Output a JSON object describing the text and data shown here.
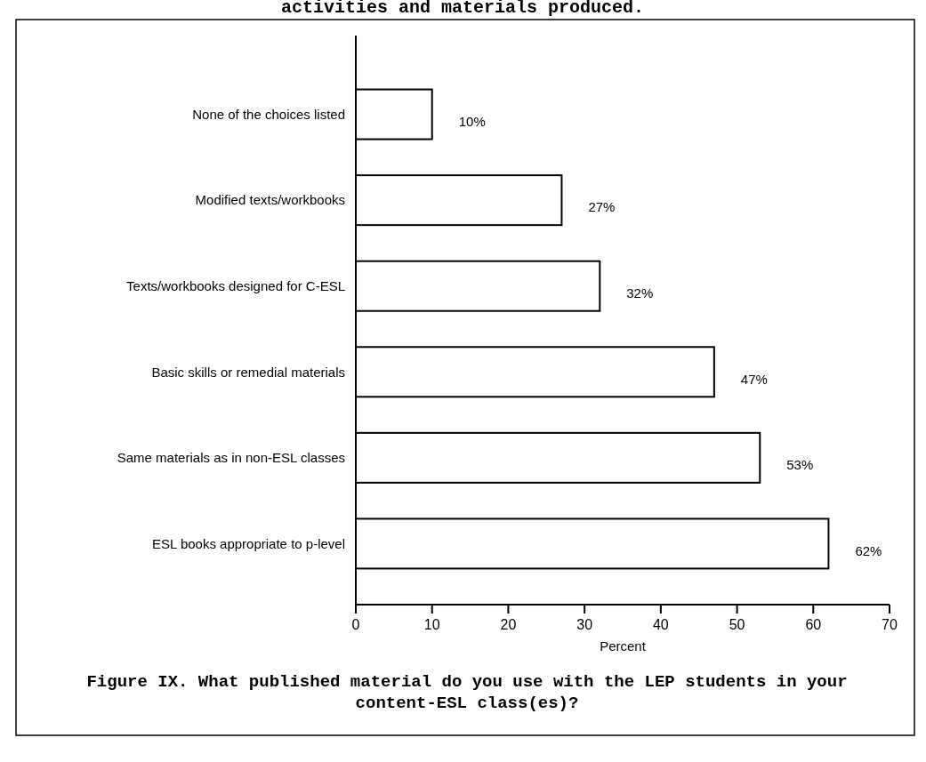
{
  "chart_data": {
    "type": "bar",
    "orientation": "horizontal",
    "categories": [
      "None of the choices listed",
      "Modified texts/workbooks",
      "Texts/workbooks designed for C-ESL",
      "Basic skills or remedial materials",
      "Same materials as in non-ESL classes",
      "ESL books appropriate to p-level"
    ],
    "values": [
      10,
      27,
      32,
      47,
      53,
      62
    ],
    "value_labels": [
      "10%",
      "27%",
      "32%",
      "47%",
      "53%",
      "62%"
    ],
    "color": "#ffffff",
    "xlim": [
      0,
      70
    ],
    "xticks": [
      0,
      10,
      20,
      30,
      40,
      50,
      60,
      70
    ],
    "xlabel": "Percent",
    "annotations": [
      "activities and materials produced.",
      "Figure IX. What published material do you use with the LEP students in your content-ESL class(es)?"
    ],
    "grid": false
  }
}
